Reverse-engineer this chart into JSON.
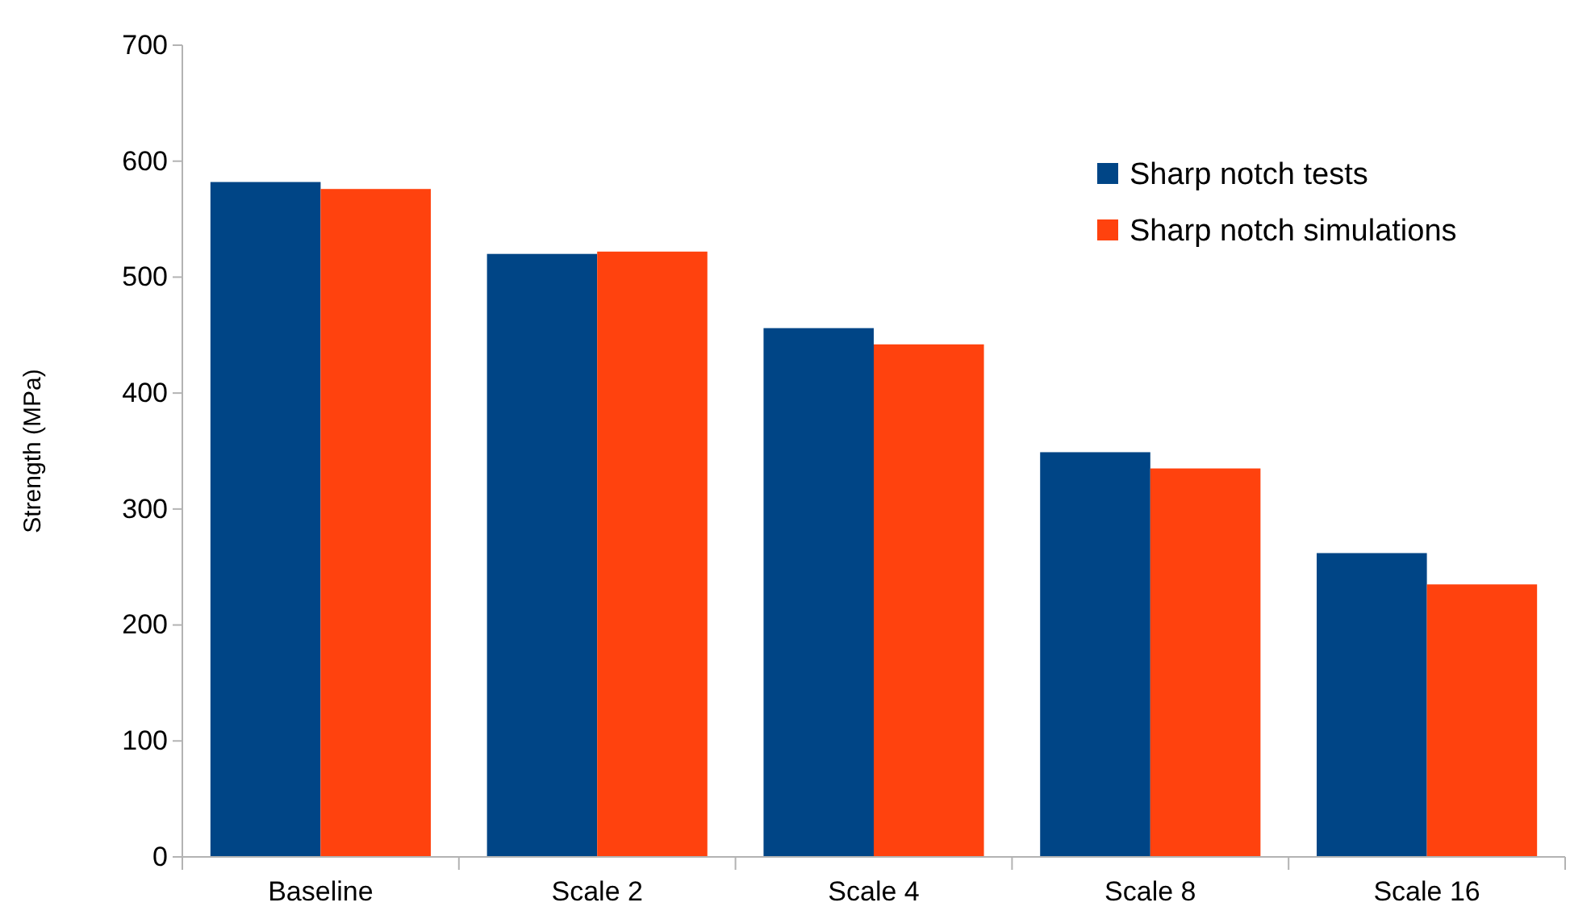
{
  "chart_data": {
    "type": "bar",
    "ylabel": "Strength (MPa)",
    "categories": [
      "Baseline",
      "Scale 2",
      "Scale 4",
      "Scale 8",
      "Scale 16"
    ],
    "series": [
      {
        "name": "Sharp notch tests",
        "color": "#004586",
        "values": [
          582,
          520,
          456,
          349,
          262
        ]
      },
      {
        "name": "Sharp notch simulations",
        "color": "#ff420e",
        "values": [
          576,
          522,
          442,
          335,
          235
        ]
      }
    ],
    "ylim": [
      0,
      700
    ],
    "yticks": [
      0,
      100,
      200,
      300,
      400,
      500,
      600,
      700
    ],
    "grid": false,
    "legend": "top right"
  }
}
